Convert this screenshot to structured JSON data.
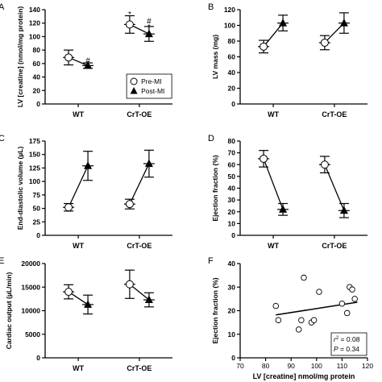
{
  "chart_data": [
    {
      "panel": "A",
      "type": "line",
      "ylabel": "LV [creatine] (nmol/mg protein)",
      "ylim": [
        0,
        140
      ],
      "yticks": [
        0,
        20,
        40,
        60,
        80,
        100,
        120,
        140
      ],
      "categories": [
        "WT",
        "CrT-OE"
      ],
      "legend": {
        "placement": "inside-bottom-right",
        "entries": [
          "Pre-MI",
          "Post-MI"
        ]
      },
      "series": [
        {
          "name": "Pre-MI",
          "marker": "open-circle",
          "values": [
            69,
            118
          ],
          "error": [
            11,
            13
          ]
        },
        {
          "name": "Post-MI",
          "marker": "filled-triangle",
          "values": [
            57,
            104
          ],
          "error": [
            4,
            11
          ]
        }
      ],
      "annotations": [
        {
          "text": "#",
          "category": "WT",
          "series": "Post-MI",
          "y": 65
        },
        {
          "text": "*",
          "category": "CrT-OE",
          "series": "Pre-MI",
          "y": 134
        },
        {
          "text": "#",
          "category": "CrT-OE",
          "series": "Post-MI",
          "y": 124
        },
        {
          "text": "*",
          "category": "CrT-OE",
          "series": "Post-MI",
          "y": 115
        }
      ]
    },
    {
      "panel": "B",
      "type": "line",
      "ylabel": "LV mass (mg)",
      "ylim": [
        0,
        120
      ],
      "yticks": [
        0,
        20,
        40,
        60,
        80,
        100,
        120
      ],
      "categories": [
        "WT",
        "CrT-OE"
      ],
      "series": [
        {
          "name": "Pre-MI",
          "marker": "open-circle",
          "values": [
            73,
            78
          ],
          "error": [
            8,
            9
          ]
        },
        {
          "name": "Post-MI",
          "marker": "filled-triangle",
          "values": [
            103,
            103
          ],
          "error": [
            10,
            13
          ]
        }
      ]
    },
    {
      "panel": "C",
      "type": "line",
      "ylabel": "End-diastolic volume (µL)",
      "ylim": [
        0,
        175
      ],
      "yticks": [
        0,
        25,
        50,
        75,
        100,
        125,
        150,
        175
      ],
      "categories": [
        "WT",
        "CrT-OE"
      ],
      "series": [
        {
          "name": "Pre-MI",
          "marker": "open-circle",
          "values": [
            52,
            58
          ],
          "error": [
            7,
            9
          ]
        },
        {
          "name": "Post-MI",
          "marker": "filled-triangle",
          "values": [
            129,
            133
          ],
          "error": [
            27,
            25
          ]
        }
      ]
    },
    {
      "panel": "D",
      "type": "line",
      "ylabel": "Ejection fraction (%)",
      "ylim": [
        0,
        80
      ],
      "yticks": [
        0,
        10,
        20,
        30,
        40,
        50,
        60,
        70,
        80
      ],
      "categories": [
        "WT",
        "CrT-OE"
      ],
      "series": [
        {
          "name": "Pre-MI",
          "marker": "open-circle",
          "values": [
            65,
            60
          ],
          "error": [
            7,
            7
          ]
        },
        {
          "name": "Post-MI",
          "marker": "filled-triangle",
          "values": [
            22,
            21
          ],
          "error": [
            5,
            6
          ]
        }
      ]
    },
    {
      "panel": "E",
      "type": "line",
      "ylabel": "Cardiac output (µL/min)",
      "ylim": [
        0,
        20000
      ],
      "yticks": [
        0,
        5000,
        10000,
        15000,
        20000
      ],
      "categories": [
        "WT",
        "CrT-OE"
      ],
      "series": [
        {
          "name": "Pre-MI",
          "marker": "open-circle",
          "values": [
            14000,
            15600
          ],
          "error": [
            1500,
            3000
          ]
        },
        {
          "name": "Post-MI",
          "marker": "filled-triangle",
          "values": [
            11300,
            12300
          ],
          "error": [
            2000,
            1500
          ]
        }
      ]
    },
    {
      "panel": "F",
      "type": "scatter",
      "xlabel": "LV [creatine] nmol/mg protein",
      "ylabel": "Ejection fraction (%)",
      "xlim": [
        70,
        120
      ],
      "xticks": [
        70,
        80,
        90,
        100,
        110,
        120
      ],
      "ylim": [
        0,
        40
      ],
      "yticks": [
        0,
        10,
        20,
        30,
        40
      ],
      "points": [
        {
          "x": 84,
          "y": 22
        },
        {
          "x": 85,
          "y": 16
        },
        {
          "x": 93,
          "y": 12
        },
        {
          "x": 94,
          "y": 16
        },
        {
          "x": 95,
          "y": 34
        },
        {
          "x": 98,
          "y": 15
        },
        {
          "x": 99,
          "y": 16
        },
        {
          "x": 101,
          "y": 28
        },
        {
          "x": 110,
          "y": 23
        },
        {
          "x": 112,
          "y": 19
        },
        {
          "x": 113,
          "y": 30
        },
        {
          "x": 114,
          "y": 29
        },
        {
          "x": 115,
          "y": 25
        }
      ],
      "regression": {
        "x": [
          84,
          116
        ],
        "y": [
          18.2,
          23.6
        ]
      },
      "stats": {
        "r2_prefix": "r",
        "r2_sup": "2",
        "r2_value": " = 0.08",
        "p_label": "P",
        "p_value": " = 0.34"
      }
    }
  ]
}
